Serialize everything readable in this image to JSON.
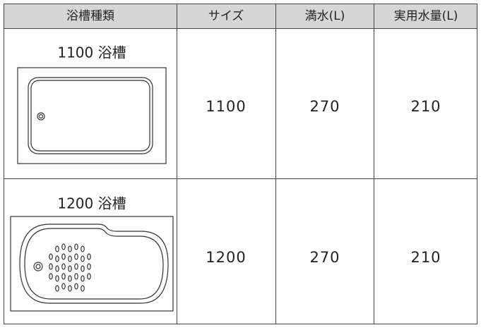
{
  "table": {
    "headers": [
      "浴槽種類",
      "サイズ",
      "満水(L)",
      "実用水量(L)"
    ],
    "rows": [
      [
        "1100 浴槽",
        "1100",
        "270",
        "210"
      ],
      [
        "1200 浴槽",
        "1200",
        "270",
        "210"
      ]
    ]
  }
}
